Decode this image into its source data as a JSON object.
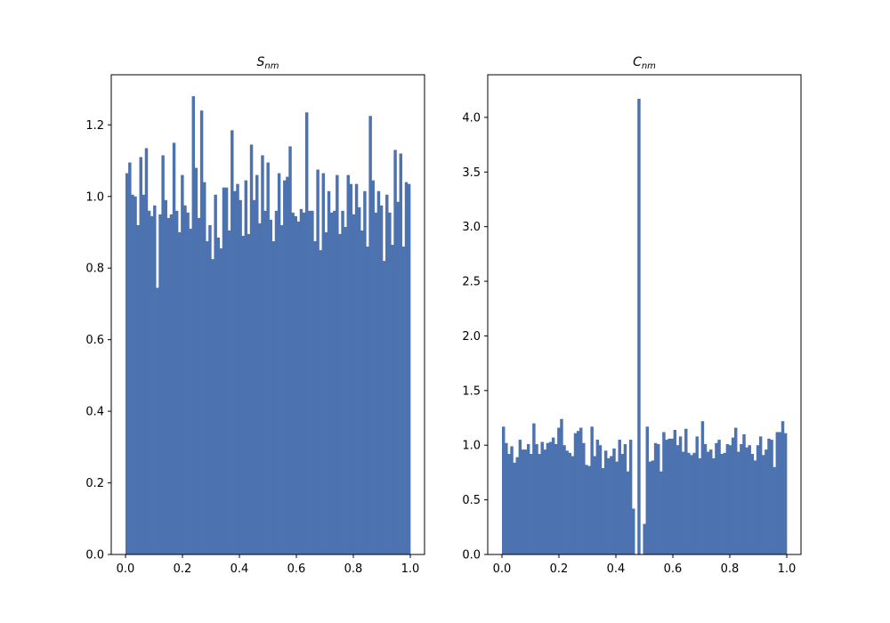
{
  "chart_data": [
    {
      "type": "histogram",
      "title": {
        "main": "S",
        "subscript": "nm"
      },
      "xlabel": "",
      "ylabel": "",
      "xlim": [
        -0.05,
        1.05
      ],
      "ylim": [
        0,
        1.34
      ],
      "xticks": [
        "0.0",
        "0.2",
        "0.4",
        "0.6",
        "0.8",
        "1.0"
      ],
      "yticks": [
        "0.0",
        "0.2",
        "0.4",
        "0.6",
        "0.8",
        "1.0",
        "1.2"
      ],
      "bin_range": [
        0,
        1
      ],
      "bar_color": "#4c72b0",
      "values": [
        1.065,
        1.095,
        1.005,
        1.0,
        0.92,
        1.11,
        1.005,
        1.135,
        0.96,
        0.945,
        0.975,
        0.745,
        0.95,
        1.115,
        0.99,
        0.94,
        0.95,
        1.15,
        0.96,
        0.9,
        1.06,
        0.975,
        0.955,
        0.91,
        1.28,
        1.08,
        0.94,
        1.24,
        1.04,
        0.875,
        0.92,
        0.825,
        1.005,
        0.885,
        0.855,
        1.025,
        1.025,
        0.905,
        1.185,
        1.015,
        1.035,
        0.99,
        0.89,
        1.045,
        0.895,
        1.145,
        0.99,
        1.06,
        0.925,
        1.115,
        0.96,
        1.095,
        0.935,
        0.875,
        0.96,
        1.065,
        0.92,
        1.045,
        1.055,
        1.14,
        0.955,
        0.945,
        0.93,
        0.965,
        0.955,
        1.235,
        0.96,
        0.96,
        0.875,
        1.075,
        0.85,
        1.065,
        0.9,
        1.015,
        0.955,
        0.96,
        1.06,
        0.895,
        0.96,
        0.915,
        1.06,
        1.035,
        0.95,
        1.035,
        0.97,
        0.905,
        1.015,
        0.86,
        1.225,
        1.045,
        0.955,
        1.015,
        0.975,
        0.82,
        1.005,
        0.955,
        0.865,
        1.13,
        0.985,
        1.12,
        0.86,
        1.04,
        1.035
      ]
    },
    {
      "type": "histogram",
      "title": {
        "main": "C",
        "subscript": "nm"
      },
      "xlabel": "",
      "ylabel": "",
      "xlim": [
        -0.05,
        1.05
      ],
      "ylim": [
        0,
        4.39
      ],
      "xticks": [
        "0.0",
        "0.2",
        "0.4",
        "0.6",
        "0.8",
        "1.0"
      ],
      "yticks": [
        "0.0",
        "0.5",
        "1.0",
        "1.5",
        "2.0",
        "2.5",
        "3.0",
        "3.5",
        "4.0"
      ],
      "bin_range": [
        0,
        1
      ],
      "bar_color": "#4c72b0",
      "values": [
        1.17,
        1.02,
        0.92,
        0.99,
        0.84,
        0.89,
        1.05,
        0.96,
        0.96,
        1.01,
        0.92,
        1.2,
        1.01,
        0.92,
        1.03,
        0.96,
        1.02,
        1.03,
        1.07,
        1.01,
        1.16,
        1.24,
        1.0,
        0.95,
        0.93,
        0.9,
        1.11,
        1.13,
        1.16,
        1.02,
        0.82,
        0.81,
        1.17,
        0.9,
        1.05,
        1.0,
        0.79,
        0.95,
        0.88,
        0.9,
        0.97,
        0.85,
        1.05,
        0.92,
        1.01,
        0.76,
        1.05,
        0.42,
        0.0,
        4.17,
        0.0,
        0.28,
        1.17,
        0.85,
        0.86,
        1.02,
        1.01,
        0.76,
        1.12,
        1.05,
        1.06,
        1.06,
        1.14,
        1.0,
        1.08,
        0.94,
        1.15,
        0.93,
        0.91,
        0.93,
        1.08,
        0.88,
        1.22,
        1.01,
        0.94,
        0.96,
        0.88,
        1.02,
        1.05,
        0.92,
        0.93,
        1.01,
        1.0,
        1.07,
        1.16,
        0.94,
        1.01,
        1.1,
        0.98,
        1.0,
        0.92,
        0.86,
        1.0,
        1.08,
        0.91,
        0.96,
        1.06,
        1.05,
        0.8,
        1.12,
        1.12,
        1.22,
        1.11
      ]
    }
  ]
}
